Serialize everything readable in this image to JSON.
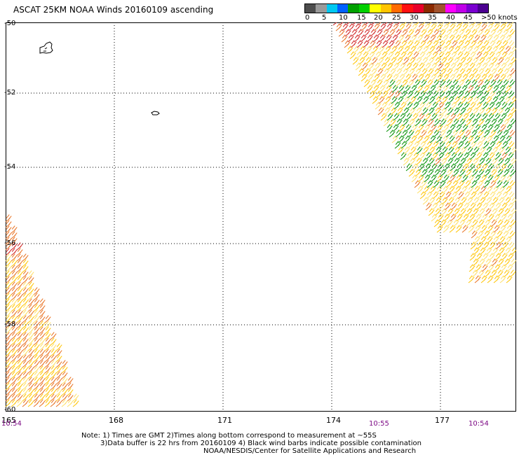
{
  "title": "ASCAT 25KM NOAA Winds 20160109 ascending",
  "legend": {
    "colors": [
      "#4d4d4d",
      "#9a9a9a",
      "#00c8f0",
      "#0060ff",
      "#00a000",
      "#00d000",
      "#ffff00",
      "#ffc400",
      "#ff6a00",
      "#ff1010",
      "#e8002a",
      "#8b2a00",
      "#a0522d",
      "#ff00ff",
      "#c000e8",
      "#7a00d0",
      "#4b0090"
    ],
    "labels": [
      "0",
      "5",
      "10",
      "15",
      "20",
      "25",
      "30",
      "35",
      "40",
      "45",
      ">50 knots"
    ]
  },
  "axes": {
    "lat_labels": [
      "-50",
      "-52",
      "-54",
      "-56",
      "-58",
      "-60"
    ],
    "lon_labels": [
      "165",
      "168",
      "171",
      "174",
      "177"
    ]
  },
  "times": [
    "10:54",
    "10:55",
    "10:54"
  ],
  "notes": [
    "Note: 1) Times are GMT 2)Times along bottom correspond to measurement at ~55S",
    "3)Data buffer is 22 hrs from 20160109 4) Black wind barbs indicate possible contamination",
    "NOAA/NESDIS/Center for Satellite Applications and Research"
  ],
  "map": {
    "islands": [
      "Auckland Islands",
      "Campbell Island"
    ],
    "barb_colors": {
      "light": "#ffe066",
      "moderate": "#ffc400",
      "strong": "#e87020",
      "gale": "#d02020",
      "green": "#009000"
    }
  }
}
